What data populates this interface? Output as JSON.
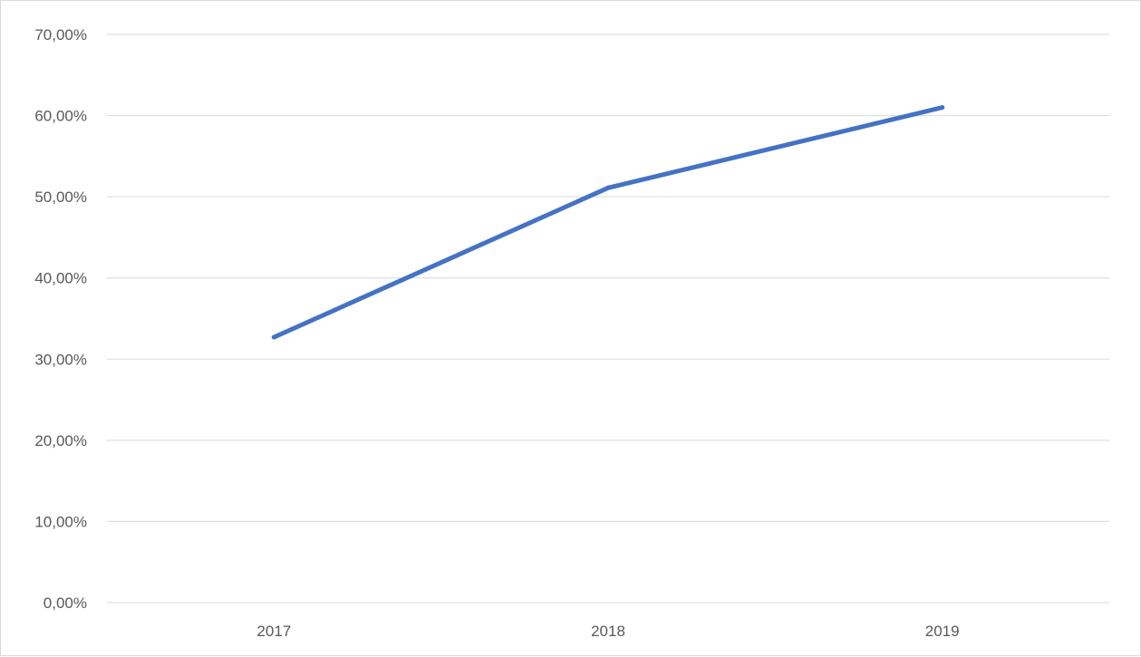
{
  "chart_data": {
    "type": "line",
    "categories": [
      "2017",
      "2018",
      "2019"
    ],
    "series": [
      {
        "values": [
          32.7,
          51.1,
          61.0
        ],
        "color": "#4472c4"
      }
    ],
    "yticks": [
      "0,00%",
      "10,00%",
      "20,00%",
      "30,00%",
      "40,00%",
      "50,00%",
      "60,00%",
      "70,00%"
    ],
    "ylim": [
      0,
      70
    ],
    "ystep": 10,
    "grid": true,
    "legend": "none",
    "title": "",
    "xlabel": "",
    "ylabel": ""
  }
}
